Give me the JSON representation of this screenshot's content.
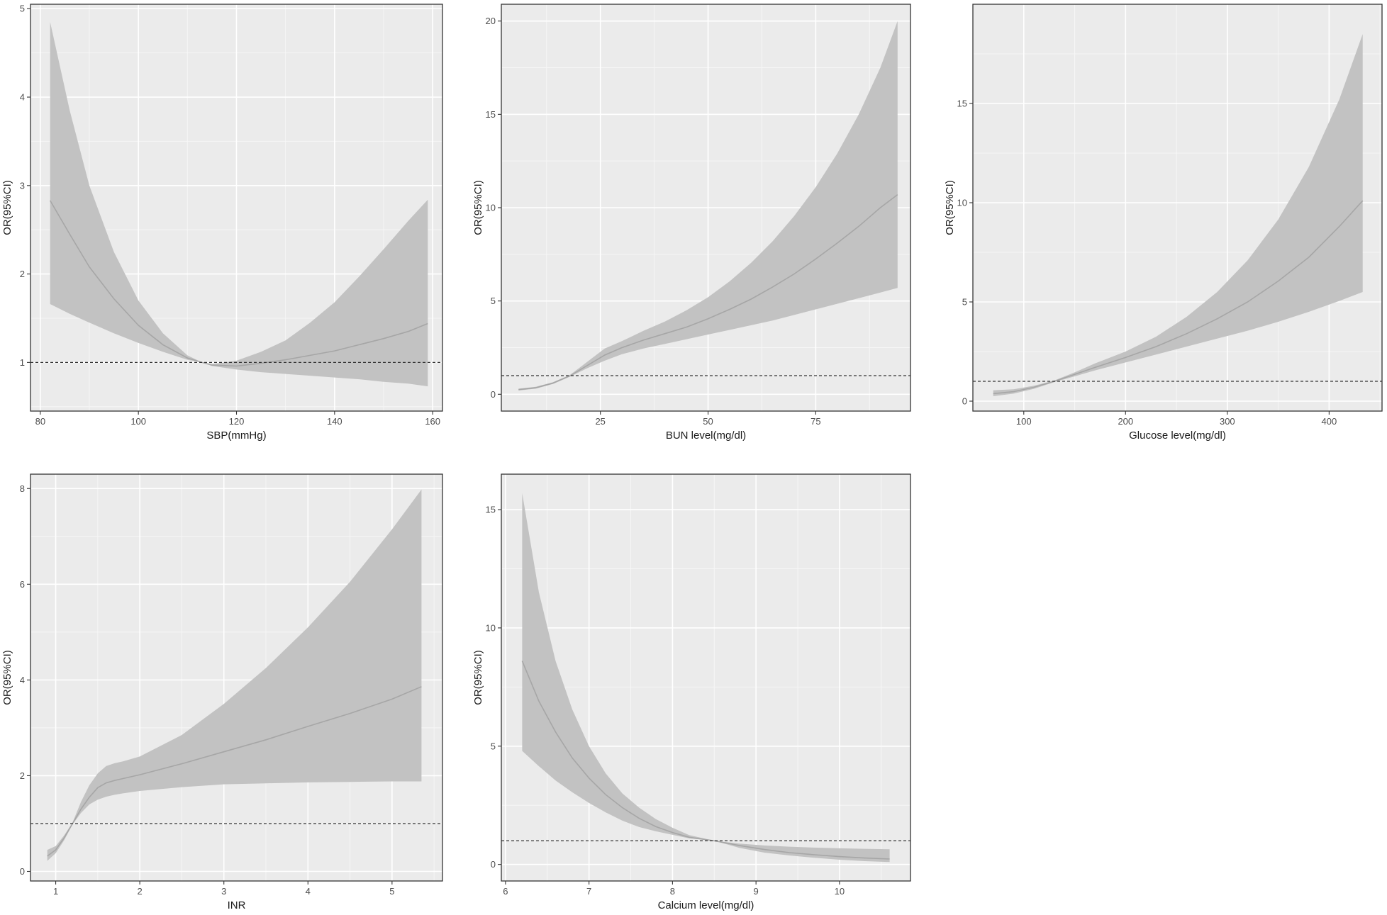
{
  "chart_data": [
    {
      "type": "line",
      "xlabel": "SBP(mmHg)",
      "ylabel": "OR(95%CI)",
      "xlim": [
        78,
        162
      ],
      "ylim": [
        0.45,
        5.05
      ],
      "xticks": [
        80,
        100,
        120,
        140,
        160
      ],
      "yticks": [
        1,
        2,
        3,
        4,
        5
      ],
      "reference_line": 1,
      "grid": true,
      "series": [
        {
          "x": [
            82,
            86,
            90,
            95,
            100,
            105,
            110,
            113,
            115,
            120,
            125,
            130,
            135,
            140,
            145,
            150,
            155,
            159
          ],
          "values": [
            2.83,
            2.45,
            2.08,
            1.72,
            1.42,
            1.2,
            1.05,
            1.0,
            0.97,
            0.96,
            0.99,
            1.03,
            1.08,
            1.13,
            1.2,
            1.27,
            1.35,
            1.44
          ],
          "lower": [
            1.66,
            1.55,
            1.45,
            1.33,
            1.22,
            1.12,
            1.03,
            1.0,
            0.96,
            0.92,
            0.89,
            0.87,
            0.85,
            0.83,
            0.81,
            0.78,
            0.76,
            0.73
          ],
          "upper": [
            4.85,
            3.85,
            3.0,
            2.25,
            1.7,
            1.33,
            1.08,
            1.0,
            0.98,
            1.02,
            1.12,
            1.25,
            1.45,
            1.68,
            1.97,
            2.28,
            2.6,
            2.84
          ]
        }
      ]
    },
    {
      "type": "line",
      "xlabel": "BUN level(mg/dl)",
      "ylabel": "OR(95%CI)",
      "xlim": [
        2,
        97
      ],
      "ylim": [
        -0.9,
        20.9
      ],
      "xticks": [
        25,
        50,
        75
      ],
      "yticks": [
        0,
        5,
        10,
        15,
        20
      ],
      "reference_line": 1,
      "grid": true,
      "series": [
        {
          "x": [
            6,
            10,
            14,
            18,
            22,
            26,
            30,
            35,
            40,
            45,
            50,
            55,
            60,
            65,
            70,
            75,
            80,
            85,
            90,
            94
          ],
          "values": [
            0.25,
            0.35,
            0.6,
            1.0,
            1.55,
            2.1,
            2.5,
            2.9,
            3.25,
            3.6,
            4.05,
            4.55,
            5.1,
            5.75,
            6.45,
            7.25,
            8.1,
            9.0,
            10.0,
            10.7
          ],
          "lower": [
            0.2,
            0.3,
            0.55,
            0.95,
            1.4,
            1.8,
            2.15,
            2.45,
            2.7,
            2.95,
            3.2,
            3.45,
            3.7,
            3.95,
            4.25,
            4.55,
            4.85,
            5.15,
            5.45,
            5.7
          ],
          "upper": [
            0.3,
            0.4,
            0.65,
            1.05,
            1.75,
            2.45,
            2.85,
            3.4,
            3.9,
            4.5,
            5.2,
            6.05,
            7.05,
            8.2,
            9.55,
            11.1,
            12.9,
            15.0,
            17.5,
            20.0
          ]
        }
      ]
    },
    {
      "type": "line",
      "xlabel": "Glucose level(mg/dl)",
      "ylabel": "OR(95%CI)",
      "xlim": [
        50,
        452
      ],
      "ylim": [
        -0.5,
        20.0
      ],
      "xticks": [
        100,
        200,
        300,
        400
      ],
      "yticks": [
        0,
        5,
        10,
        15
      ],
      "reference_line": 1,
      "grid": true,
      "series": [
        {
          "x": [
            70,
            90,
            110,
            130,
            150,
            170,
            200,
            230,
            260,
            290,
            320,
            350,
            380,
            410,
            433
          ],
          "values": [
            0.38,
            0.48,
            0.7,
            1.0,
            1.35,
            1.7,
            2.2,
            2.75,
            3.4,
            4.15,
            5.0,
            6.05,
            7.25,
            8.8,
            10.1
          ],
          "lower": [
            0.25,
            0.38,
            0.62,
            0.96,
            1.25,
            1.55,
            1.95,
            2.35,
            2.75,
            3.15,
            3.55,
            4.0,
            4.5,
            5.05,
            5.5
          ],
          "upper": [
            0.55,
            0.6,
            0.78,
            1.04,
            1.45,
            1.9,
            2.5,
            3.25,
            4.25,
            5.5,
            7.1,
            9.15,
            11.8,
            15.2,
            18.5
          ]
        }
      ]
    },
    {
      "type": "line",
      "xlabel": "INR",
      "ylabel": "OR(95%CI)",
      "xlim": [
        0.7,
        5.6
      ],
      "ylim": [
        -0.2,
        8.3
      ],
      "xticks": [
        1,
        2,
        3,
        4,
        5
      ],
      "yticks": [
        0,
        2,
        4,
        6,
        8
      ],
      "reference_line": 1,
      "grid": true,
      "series": [
        {
          "x": [
            0.9,
            1.0,
            1.1,
            1.2,
            1.3,
            1.4,
            1.5,
            1.6,
            1.7,
            1.8,
            2.0,
            2.5,
            3.0,
            3.5,
            4.0,
            4.5,
            5.0,
            5.35
          ],
          "values": [
            0.32,
            0.45,
            0.7,
            1.0,
            1.3,
            1.55,
            1.75,
            1.85,
            1.9,
            1.94,
            2.02,
            2.25,
            2.5,
            2.75,
            3.03,
            3.3,
            3.6,
            3.86
          ],
          "lower": [
            0.22,
            0.38,
            0.65,
            0.98,
            1.22,
            1.4,
            1.5,
            1.56,
            1.6,
            1.63,
            1.68,
            1.76,
            1.82,
            1.84,
            1.86,
            1.87,
            1.88,
            1.88
          ],
          "upper": [
            0.45,
            0.53,
            0.75,
            1.02,
            1.45,
            1.8,
            2.05,
            2.2,
            2.26,
            2.3,
            2.4,
            2.85,
            3.5,
            4.25,
            5.1,
            6.05,
            7.15,
            7.98
          ]
        }
      ]
    },
    {
      "type": "line",
      "xlabel": "Calcium level(mg/dl)",
      "ylabel": "OR(95%CI)",
      "xlim": [
        5.95,
        10.85
      ],
      "ylim": [
        -0.7,
        16.5
      ],
      "xticks": [
        6,
        7,
        8,
        9,
        10
      ],
      "yticks": [
        0,
        5,
        10,
        15
      ],
      "reference_line": 1,
      "grid": true,
      "series": [
        {
          "x": [
            6.2,
            6.4,
            6.6,
            6.8,
            7.0,
            7.2,
            7.4,
            7.6,
            7.8,
            8.0,
            8.2,
            8.5,
            8.8,
            9.1,
            9.4,
            9.7,
            10.0,
            10.3,
            10.6
          ],
          "values": [
            8.6,
            6.9,
            5.6,
            4.5,
            3.65,
            2.95,
            2.4,
            1.95,
            1.6,
            1.35,
            1.15,
            1.0,
            0.8,
            0.63,
            0.5,
            0.41,
            0.33,
            0.27,
            0.23
          ],
          "lower": [
            4.8,
            4.15,
            3.55,
            3.05,
            2.6,
            2.2,
            1.85,
            1.58,
            1.4,
            1.25,
            1.1,
            1.0,
            0.7,
            0.5,
            0.38,
            0.28,
            0.2,
            0.14,
            0.1
          ],
          "upper": [
            15.7,
            11.5,
            8.6,
            6.55,
            5.0,
            3.85,
            3.0,
            2.4,
            1.92,
            1.55,
            1.24,
            1.0,
            0.88,
            0.8,
            0.75,
            0.71,
            0.68,
            0.66,
            0.64
          ]
        }
      ]
    }
  ]
}
